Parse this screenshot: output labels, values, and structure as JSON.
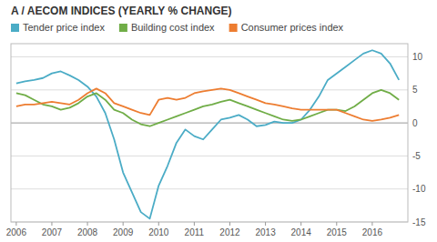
{
  "chart_data": {
    "type": "line",
    "title": "A / AECOM INDICES (YEARLY % CHANGE)",
    "x": [
      2006.0,
      2006.25,
      2006.5,
      2006.75,
      2007.0,
      2007.25,
      2007.5,
      2007.75,
      2008.0,
      2008.25,
      2008.5,
      2008.75,
      2009.0,
      2009.25,
      2009.5,
      2009.75,
      2010.0,
      2010.25,
      2010.5,
      2010.75,
      2011.0,
      2011.25,
      2011.5,
      2011.75,
      2012.0,
      2012.25,
      2012.5,
      2012.75,
      2013.0,
      2013.25,
      2013.5,
      2013.75,
      2014.0,
      2014.25,
      2014.5,
      2014.75,
      2015.0,
      2015.25,
      2015.5,
      2015.75,
      2016.0,
      2016.25,
      2016.5,
      2016.75
    ],
    "series": [
      {
        "name": "Tender price index",
        "color": "#4bacc6",
        "values": [
          6.0,
          6.3,
          6.5,
          6.8,
          7.5,
          7.8,
          7.2,
          6.5,
          5.5,
          4.0,
          1.5,
          -2.5,
          -7.5,
          -10.5,
          -13.5,
          -14.5,
          -9.5,
          -6.5,
          -3.0,
          -1.0,
          -2.0,
          -2.5,
          -1.0,
          0.5,
          0.8,
          1.2,
          0.5,
          -0.5,
          -0.3,
          0.2,
          0.0,
          0.0,
          0.5,
          2.0,
          4.0,
          6.5,
          7.5,
          8.5,
          9.5,
          10.5,
          11.0,
          10.5,
          9.0,
          6.5
        ]
      },
      {
        "name": "Building cost index",
        "color": "#70ad47",
        "values": [
          4.5,
          4.2,
          3.5,
          2.8,
          2.5,
          2.0,
          2.3,
          3.0,
          4.0,
          4.5,
          3.5,
          2.0,
          1.5,
          0.5,
          -0.2,
          -0.5,
          0.0,
          0.5,
          1.0,
          1.5,
          2.0,
          2.5,
          2.8,
          3.2,
          3.5,
          3.0,
          2.5,
          2.0,
          1.5,
          1.0,
          0.5,
          0.3,
          0.5,
          1.0,
          1.5,
          2.0,
          2.0,
          1.8,
          2.5,
          3.5,
          4.5,
          5.0,
          4.5,
          3.5
        ]
      },
      {
        "name": "Consumer prices index",
        "color": "#ed7d31",
        "values": [
          2.5,
          2.8,
          2.8,
          3.0,
          3.2,
          3.0,
          2.8,
          3.5,
          4.5,
          5.2,
          4.5,
          3.0,
          2.5,
          2.0,
          1.5,
          1.2,
          3.5,
          3.8,
          3.5,
          3.8,
          4.5,
          4.8,
          5.0,
          5.2,
          5.0,
          4.5,
          4.0,
          3.5,
          3.0,
          2.8,
          2.5,
          2.2,
          2.0,
          2.0,
          2.0,
          2.0,
          2.0,
          1.5,
          1.0,
          0.5,
          0.3,
          0.5,
          0.8,
          1.2
        ]
      }
    ],
    "xlim": [
      2005.85,
      2017.0
    ],
    "xticks": [
      2006,
      2007,
      2008,
      2009,
      2010,
      2011,
      2012,
      2013,
      2014,
      2015,
      2016
    ],
    "ylim": [
      -15,
      12
    ],
    "yticks": [
      -15,
      -10,
      -5,
      0,
      5,
      10
    ],
    "grid": true,
    "legend": "upper left"
  }
}
